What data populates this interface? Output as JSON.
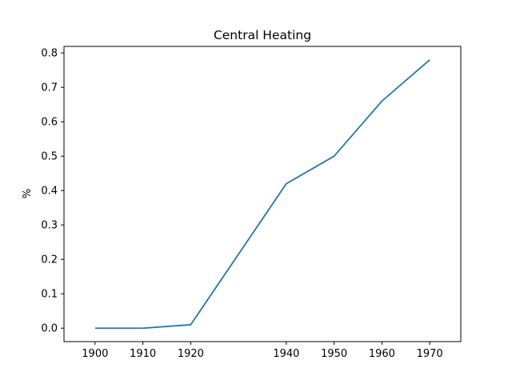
{
  "chart_data": {
    "type": "line",
    "title": "Central Heating",
    "xlabel": "",
    "ylabel": "%",
    "x": [
      1900,
      1910,
      1915,
      1920,
      1940,
      1950,
      1960,
      1970
    ],
    "series": [
      {
        "values": [
          0.0,
          0.0,
          0.005,
          0.01,
          0.42,
          0.5,
          0.66,
          0.78
        ],
        "color": "#1f77b4"
      }
    ],
    "xticks": [
      1900,
      1910,
      1920,
      1940,
      1950,
      1960,
      1970
    ],
    "xtick_labels": [
      "1900",
      "1910",
      "1920",
      "1940",
      "1950",
      "1960",
      "1970"
    ],
    "yticks": [
      0.0,
      0.1,
      0.2,
      0.3,
      0.4,
      0.5,
      0.6,
      0.7,
      0.8
    ],
    "ytick_labels": [
      "0.0",
      "0.1",
      "0.2",
      "0.3",
      "0.4",
      "0.5",
      "0.6",
      "0.7",
      "0.8"
    ],
    "xlim": [
      1893.5,
      1976.5
    ],
    "ylim": [
      -0.039,
      0.819
    ],
    "grid": false,
    "legend": "none"
  }
}
